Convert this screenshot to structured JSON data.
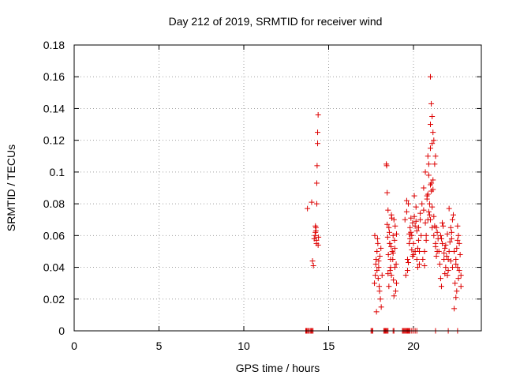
{
  "chart_data": {
    "type": "scatter",
    "title": "Day 212 of 2019, SRMTID for receiver wind",
    "xlabel": "GPS time / hours",
    "ylabel": "SRMTID / TECUs",
    "xlim": [
      0,
      24
    ],
    "ylim": [
      0,
      0.18
    ],
    "xticks": [
      0,
      5,
      10,
      15,
      20
    ],
    "xtick_labels": [
      "0",
      "5",
      "10",
      "15",
      "20"
    ],
    "yticks": [
      0,
      0.02,
      0.04,
      0.06,
      0.08,
      0.1,
      0.12,
      0.14,
      0.16,
      0.18
    ],
    "ytick_labels": [
      "0",
      "0.02",
      "0.04",
      "0.06",
      "0.08",
      "0.1",
      "0.12",
      "0.14",
      "0.16",
      "0.18"
    ],
    "grid": true,
    "marker": "+",
    "color": "#dd0000",
    "series": [
      {
        "name": "SRMTID",
        "x": [
          13.75,
          14.0,
          14.05,
          14.1,
          14.15,
          14.2,
          14.22,
          14.25,
          14.28,
          14.3,
          14.3,
          14.32,
          14.35,
          14.35,
          14.38,
          14.38,
          14.4,
          14.22,
          14.25,
          14.28,
          17.7,
          17.75,
          17.8,
          17.85,
          17.9,
          17.95,
          18.0,
          18.05,
          18.1,
          18.15,
          17.72,
          17.78,
          17.85,
          17.92,
          17.98,
          18.02,
          18.08,
          17.82,
          17.88,
          17.95,
          18.4,
          18.45,
          18.5,
          18.55,
          18.6,
          18.65,
          18.7,
          18.75,
          18.8,
          18.85,
          18.9,
          18.95,
          19.0,
          18.42,
          18.48,
          18.52,
          18.58,
          18.62,
          18.68,
          18.72,
          18.78,
          18.82,
          18.88,
          18.92,
          18.98,
          18.5,
          18.55,
          18.6,
          18.7,
          18.8,
          18.9,
          19.0,
          18.45,
          18.65,
          18.85,
          19.5,
          19.6,
          19.7,
          19.8,
          19.9,
          20.0,
          20.1,
          20.2,
          20.3,
          20.4,
          19.55,
          19.65,
          19.75,
          19.85,
          19.95,
          20.05,
          20.15,
          20.25,
          20.35,
          20.45,
          19.6,
          19.8,
          20.0,
          20.2,
          20.4,
          19.7,
          19.9,
          20.1,
          20.3,
          19.65,
          19.85,
          20.05,
          20.25,
          19.75,
          19.95,
          20.15,
          20.35,
          20.5,
          20.6,
          20.7,
          20.8,
          20.9,
          21.0,
          21.1,
          21.2,
          21.3,
          21.4,
          20.55,
          20.65,
          20.75,
          20.85,
          20.95,
          21.05,
          21.15,
          21.25,
          21.35,
          21.45,
          20.6,
          20.8,
          21.0,
          21.2,
          21.4,
          20.7,
          20.9,
          21.1,
          21.3,
          20.65,
          20.85,
          21.05,
          21.25,
          20.75,
          20.95,
          21.15,
          21.35,
          20.85,
          21.0,
          21.1,
          21.0,
          21.05,
          21.1,
          21.15,
          21.2,
          21.3,
          21.0,
          20.9,
          21.5,
          21.6,
          21.7,
          21.8,
          21.9,
          22.0,
          22.1,
          22.2,
          22.3,
          21.55,
          21.65,
          21.75,
          21.85,
          21.95,
          22.05,
          22.15,
          22.25,
          22.35,
          21.6,
          21.8,
          22.0,
          22.2,
          21.7,
          21.9,
          22.1,
          22.3,
          21.65,
          21.85,
          22.05,
          22.25,
          22.4,
          22.5,
          22.6,
          22.7,
          22.8,
          22.45,
          22.55,
          22.65,
          22.75,
          22.5,
          22.6,
          22.7,
          22.55,
          22.65,
          22.4,
          22.8,
          22.6,
          22.5
        ],
        "y": [
          0.077,
          0.081,
          0.044,
          0.041,
          0.058,
          0.06,
          0.062,
          0.065,
          0.055,
          0.08,
          0.093,
          0.104,
          0.118,
          0.125,
          0.136,
          0.054,
          0.059,
          0.066,
          0.063,
          0.057,
          0.03,
          0.035,
          0.045,
          0.05,
          0.055,
          0.04,
          0.025,
          0.02,
          0.015,
          0.035,
          0.06,
          0.042,
          0.038,
          0.033,
          0.028,
          0.047,
          0.052,
          0.012,
          0.058,
          0.044,
          0.105,
          0.087,
          0.076,
          0.065,
          0.055,
          0.045,
          0.035,
          0.05,
          0.06,
          0.07,
          0.04,
          0.025,
          0.03,
          0.104,
          0.059,
          0.048,
          0.062,
          0.038,
          0.053,
          0.071,
          0.045,
          0.032,
          0.057,
          0.066,
          0.042,
          0.036,
          0.028,
          0.055,
          0.073,
          0.049,
          0.052,
          0.061,
          0.067,
          0.04,
          0.022,
          0.07,
          0.075,
          0.08,
          0.065,
          0.06,
          0.055,
          0.05,
          0.045,
          0.065,
          0.07,
          0.035,
          0.045,
          0.055,
          0.062,
          0.068,
          0.072,
          0.078,
          0.04,
          0.05,
          0.06,
          0.082,
          0.058,
          0.048,
          0.063,
          0.074,
          0.043,
          0.051,
          0.066,
          0.057,
          0.038,
          0.071,
          0.085,
          0.052,
          0.061,
          0.047,
          0.069,
          0.042,
          0.08,
          0.09,
          0.1,
          0.085,
          0.075,
          0.07,
          0.065,
          0.06,
          0.055,
          0.05,
          0.045,
          0.05,
          0.06,
          0.07,
          0.08,
          0.088,
          0.095,
          0.105,
          0.065,
          0.058,
          0.076,
          0.083,
          0.092,
          0.072,
          0.062,
          0.068,
          0.098,
          0.078,
          0.053,
          0.041,
          0.086,
          0.093,
          0.066,
          0.057,
          0.073,
          0.089,
          0.047,
          0.11,
          0.115,
          0.118,
          0.16,
          0.143,
          0.135,
          0.125,
          0.12,
          0.11,
          0.13,
          0.105,
          0.05,
          0.06,
          0.055,
          0.045,
          0.04,
          0.035,
          0.05,
          0.065,
          0.07,
          0.042,
          0.058,
          0.066,
          0.052,
          0.047,
          0.038,
          0.056,
          0.062,
          0.073,
          0.033,
          0.049,
          0.061,
          0.044,
          0.068,
          0.054,
          0.077,
          0.04,
          0.028,
          0.036,
          0.045,
          0.058,
          0.05,
          0.045,
          0.04,
          0.055,
          0.035,
          0.03,
          0.025,
          0.06,
          0.048,
          0.042,
          0.057,
          0.038,
          0.052,
          0.033,
          0.014,
          0.028,
          0.066,
          0.021
        ]
      }
    ],
    "zero_ticks_x": [
      13.65,
      13.68,
      13.72,
      13.78,
      13.85,
      13.92,
      13.98,
      14.02,
      14.08,
      17.5,
      17.55,
      17.6,
      18.25,
      18.3,
      18.35,
      18.4,
      18.45,
      18.5,
      18.8,
      18.85,
      19.35,
      19.4,
      19.45,
      19.5,
      19.55,
      19.6,
      19.65,
      19.7,
      19.75,
      19.8,
      19.9,
      20.0,
      20.1,
      20.2,
      21.3,
      22.05,
      22.6
    ]
  }
}
